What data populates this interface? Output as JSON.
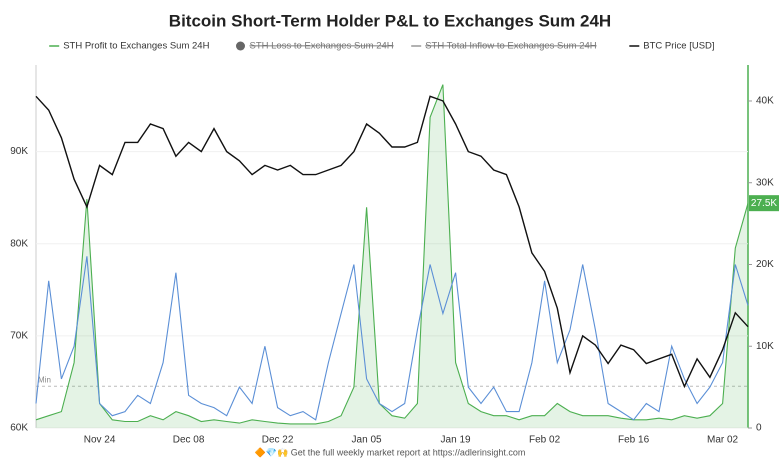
{
  "chart_data": {
    "type": "line",
    "title": "Bitcoin Short-Term Holder P&L to Exchanges Sum 24H",
    "footer": "🔶💎🙌 Get the full weekly market report at https://adlerinsight.com",
    "categories": [
      null,
      null,
      null,
      null,
      null,
      "Nov 24",
      null,
      null,
      null,
      null,
      null,
      null,
      "Dec 08",
      null,
      null,
      null,
      null,
      null,
      null,
      "Dec 22",
      null,
      null,
      null,
      null,
      null,
      null,
      "Jan 05",
      null,
      null,
      null,
      null,
      null,
      null,
      "Jan 19",
      null,
      null,
      null,
      null,
      null,
      null,
      "Feb 02",
      null,
      null,
      null,
      null,
      null,
      null,
      "Feb 16",
      null,
      null,
      null,
      null,
      null,
      null,
      "Mar 02",
      null,
      null
    ],
    "series": [
      {
        "name": "STH Profit to Exchanges Sum 24H",
        "color": "#4caf50",
        "axis": "y2",
        "area": true,
        "values": [
          1000,
          1500,
          2000,
          8000,
          28000,
          3000,
          1000,
          800,
          800,
          1500,
          1000,
          2000,
          1500,
          800,
          1000,
          800,
          600,
          1000,
          800,
          600,
          500,
          500,
          500,
          800,
          1500,
          5000,
          27000,
          3000,
          1500,
          1200,
          3000,
          38000,
          42000,
          8000,
          3000,
          2000,
          1500,
          1500,
          1000,
          1500,
          1500,
          3000,
          2000,
          1500,
          1500,
          1500,
          1200,
          1000,
          1000,
          1200,
          1000,
          1500,
          1200,
          1500,
          3000,
          22000,
          27500
        ],
        "value_labels": [
          null,
          null,
          null,
          null,
          null,
          null,
          null,
          null,
          null,
          null,
          null,
          null,
          null,
          null,
          null,
          null,
          null,
          null,
          null,
          null,
          null,
          null,
          null,
          null,
          null,
          null,
          null,
          null,
          null,
          null,
          null,
          null,
          null,
          null,
          null,
          null,
          null,
          null,
          null,
          null,
          null,
          null,
          null,
          null,
          null,
          null,
          null,
          null,
          null,
          null,
          null,
          null,
          null,
          null,
          null,
          null,
          "27.5K"
        ]
      },
      {
        "name": "STH Loss to Exchanges Sum 24H",
        "color": "#666666",
        "hidden": true,
        "legend_marker": "dot"
      },
      {
        "name": "STH Total Inflow to Exchanges Sum 24H",
        "color": "#999999",
        "hidden": true,
        "legend_marker": "line"
      },
      {
        "name": "BTC Price [USD]",
        "color": "#111111",
        "axis": "y",
        "values": [
          96000,
          94500,
          91500,
          87000,
          84000,
          88500,
          87500,
          91000,
          91000,
          93000,
          92500,
          89500,
          91000,
          90000,
          92500,
          90000,
          89000,
          87500,
          88500,
          88000,
          88500,
          87500,
          87500,
          88000,
          88500,
          90000,
          93000,
          92000,
          90500,
          90500,
          91000,
          96000,
          95500,
          93000,
          90000,
          89500,
          88000,
          87500,
          84000,
          79000,
          77000,
          73000,
          66000,
          70000,
          69000,
          67000,
          69000,
          68500,
          67000,
          67500,
          68000,
          64500,
          67500,
          65500,
          68500,
          72500,
          71000
        ]
      },
      {
        "color": "#5b8fd6",
        "axis": "y2",
        "values": [
          3000,
          18000,
          6000,
          10000,
          21000,
          3000,
          1500,
          2000,
          4000,
          3000,
          8000,
          19000,
          4000,
          3000,
          2500,
          1500,
          5000,
          3000,
          10000,
          2500,
          1500,
          2000,
          1000,
          8000,
          14000,
          20000,
          6000,
          3000,
          2000,
          3000,
          12000,
          20000,
          14000,
          19000,
          5000,
          3000,
          5000,
          2000,
          2000,
          8000,
          18000,
          8000,
          12000,
          20000,
          12000,
          3000,
          2000,
          1000,
          3000,
          2000,
          10000,
          6000,
          3000,
          5000,
          8000,
          20000,
          15000
        ]
      }
    ],
    "annotations": [
      {
        "text": "Min",
        "value": 5100,
        "axis": "y2"
      }
    ],
    "ylim": [
      60000,
      99400
    ],
    "yticks": [
      {
        "value": 60000,
        "label": "60K"
      },
      {
        "value": 70000,
        "label": "70K"
      },
      {
        "value": 80000,
        "label": "80K"
      },
      {
        "value": 90000,
        "label": "90K"
      }
    ],
    "y2lim": [
      0,
      44400
    ],
    "y2ticks": [
      0,
      {
        "value": 10000,
        "label": "10K"
      },
      {
        "value": 20000,
        "label": "20K"
      },
      {
        "value": 30000,
        "label": "30K"
      },
      {
        "value": 40000,
        "label": "40K"
      }
    ],
    "grid": true
  }
}
